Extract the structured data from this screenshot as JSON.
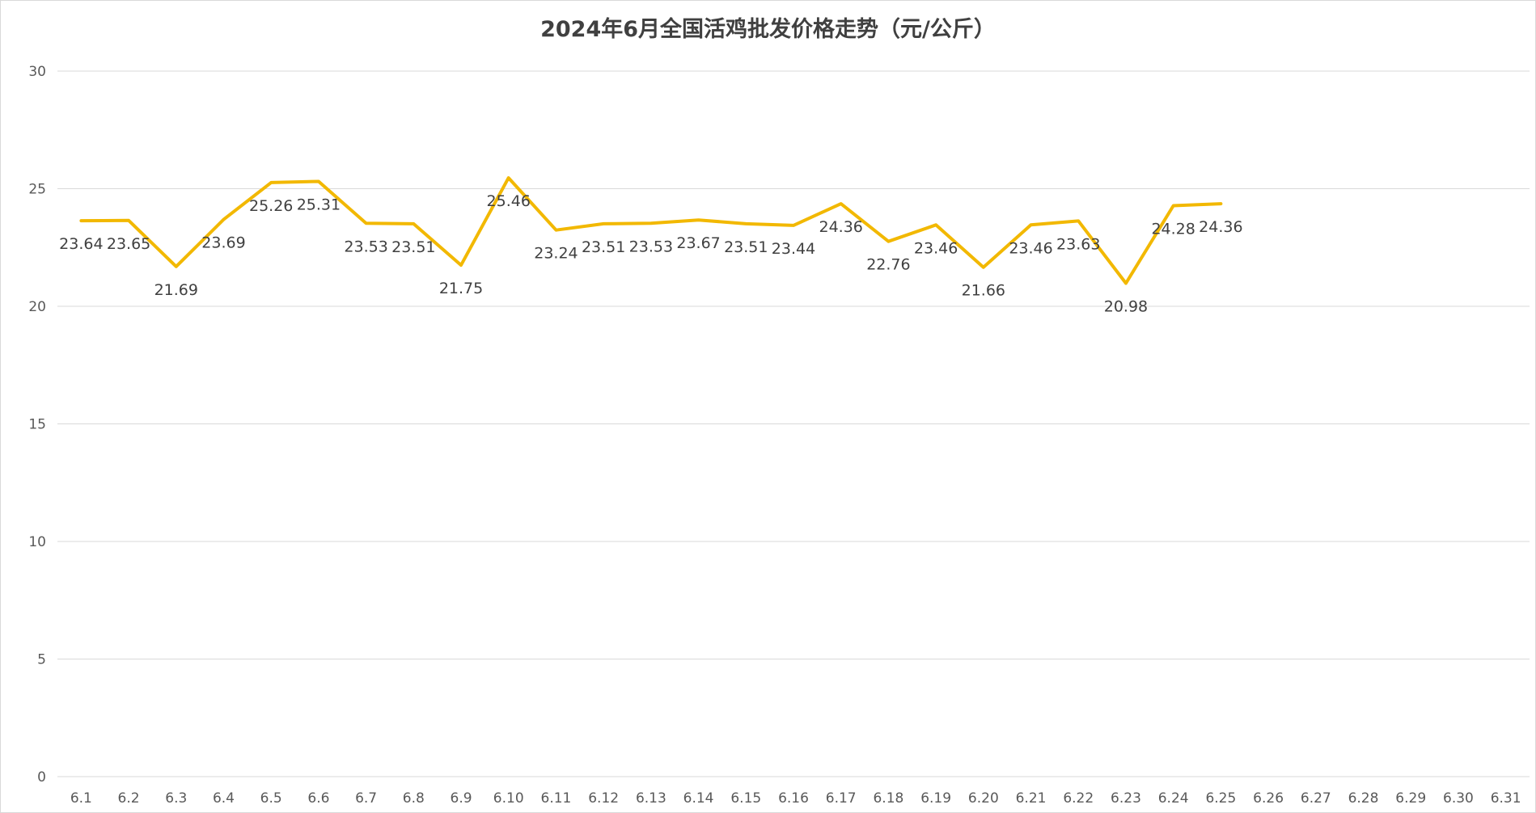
{
  "chart_data": {
    "type": "line",
    "title": "2024年6月全国活鸡批发价格走势（元/公斤）",
    "xlabel": "",
    "ylabel": "",
    "categories": [
      "6.1",
      "6.2",
      "6.3",
      "6.4",
      "6.5",
      "6.6",
      "6.7",
      "6.8",
      "6.9",
      "6.10",
      "6.11",
      "6.12",
      "6.13",
      "6.14",
      "6.15",
      "6.16",
      "6.17",
      "6.18",
      "6.19",
      "6.20",
      "6.21",
      "6.22",
      "6.23",
      "6.24",
      "6.25",
      "6.26",
      "6.27",
      "6.28",
      "6.29",
      "6.30",
      "6.31"
    ],
    "series": [
      {
        "values": [
          23.64,
          23.65,
          21.69,
          23.69,
          25.26,
          25.31,
          23.53,
          23.51,
          21.75,
          25.46,
          23.24,
          23.51,
          23.53,
          23.67,
          23.51,
          23.44,
          24.36,
          22.76,
          23.46,
          21.66,
          23.46,
          23.63,
          20.98,
          24.28,
          24.36,
          null,
          null,
          null,
          null,
          null,
          null
        ],
        "color": "#f2b800"
      }
    ],
    "ylim": [
      0,
      30
    ],
    "yticks": [
      0,
      5,
      10,
      15,
      20,
      25,
      30
    ],
    "grid": true,
    "legend": "none",
    "data_labels": true
  }
}
